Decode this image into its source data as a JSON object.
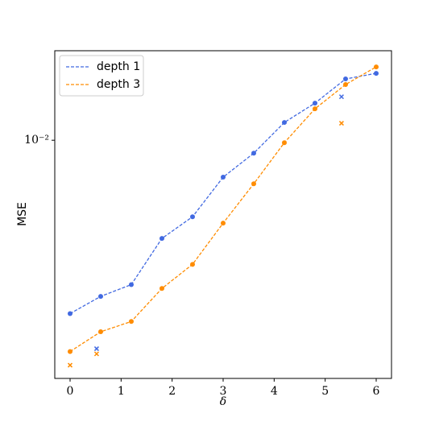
{
  "chart_data": {
    "type": "line",
    "xlabel": "δ",
    "ylabel": "MSE",
    "log_y": true,
    "legend": "upper left",
    "xlim": [
      -0.3,
      6.3
    ],
    "xticks": [
      0,
      1,
      2,
      3,
      4,
      5,
      6
    ],
    "ylim": [
      0.0034,
      0.015
    ],
    "yticks": [
      {
        "value": 0.01,
        "label": "10⁻²"
      }
    ],
    "series": [
      {
        "name": "depth 1",
        "color": "#4169e1",
        "x": [
          0,
          0.6,
          1.2,
          1.8,
          2.4,
          3,
          3.6,
          4.2,
          4.8,
          5.4,
          6
        ],
        "values": [
          0.00456,
          0.00493,
          0.0052,
          0.00641,
          0.00707,
          0.00846,
          0.00943,
          0.01084,
          0.01183,
          0.0132,
          0.01354
        ],
        "extra_points": {
          "x": [
            0.52,
            5.32
          ],
          "values": [
            0.00389,
            0.01218
          ]
        }
      },
      {
        "name": "depth 3",
        "color": "#ff8c00",
        "x": [
          0,
          0.6,
          1.2,
          1.8,
          2.4,
          3,
          3.6,
          4.2,
          4.8,
          5.4,
          6
        ],
        "values": [
          0.00384,
          0.0042,
          0.0044,
          0.00511,
          0.0057,
          0.00687,
          0.00821,
          0.00989,
          0.01153,
          0.01287,
          0.01394
        ],
        "extra_points": {
          "x": [
            0,
            0.52,
            5.32
          ],
          "values": [
            0.00361,
            0.0038,
            0.0108
          ]
        }
      }
    ]
  }
}
